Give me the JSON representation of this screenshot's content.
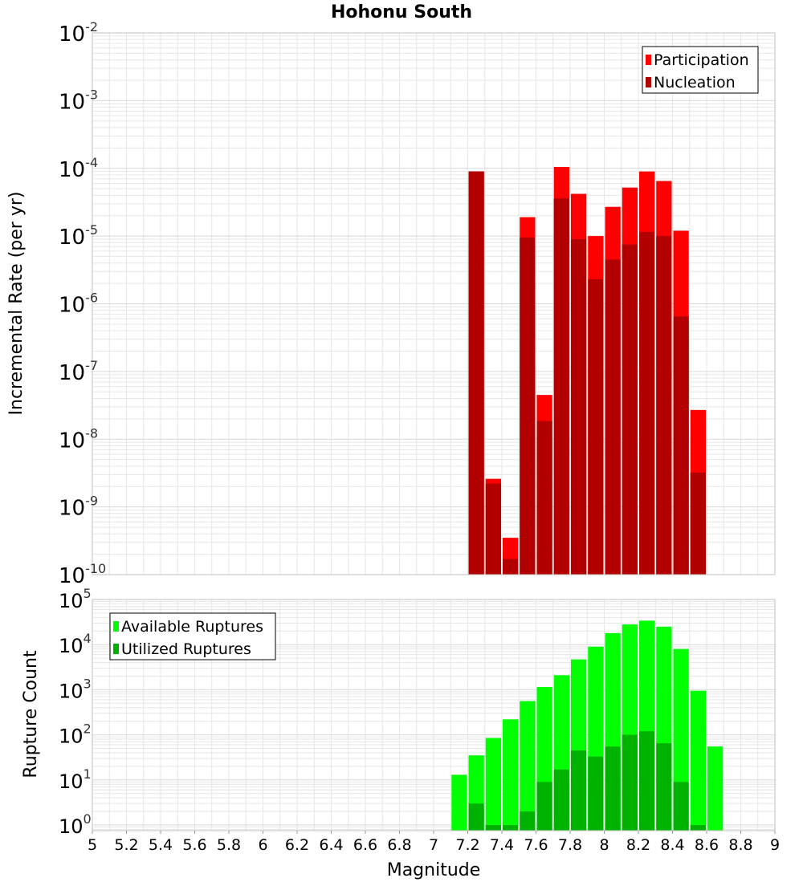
{
  "title": "Hohonu South",
  "xlabel": "Magnitude",
  "x_ticks": [
    "5",
    "5.2",
    "5.4",
    "5.6",
    "5.8",
    "6",
    "6.2",
    "6.4",
    "6.6",
    "6.8",
    "7",
    "7.2",
    "7.4",
    "7.6",
    "7.8",
    "8",
    "8.2",
    "8.4",
    "8.6",
    "8.8",
    "9"
  ],
  "colors": {
    "participation": "#ff0000",
    "nucleation": "#b20000",
    "available": "#00ff00",
    "utilized": "#00b200",
    "grid": "#e6e6e6",
    "frame": "#c0c0c0"
  },
  "chart_data": [
    {
      "type": "bar",
      "title": "Hohonu South",
      "xlabel": "Magnitude",
      "ylabel": "Incremental Rate (per yr)",
      "yscale": "log",
      "xlim": [
        5,
        9
      ],
      "ylim": [
        1e-10,
        0.01
      ],
      "y_tick_exponents": [
        "-2",
        "-3",
        "-4",
        "-5",
        "-6",
        "-7",
        "-8",
        "-9",
        "-10"
      ],
      "legend": {
        "position": "top-right",
        "entries": [
          "Participation",
          "Nucleation"
        ]
      },
      "grid": true,
      "x": [
        7.25,
        7.35,
        7.45,
        7.55,
        7.65,
        7.75,
        7.85,
        7.95,
        8.05,
        8.15,
        8.25,
        8.35,
        8.45,
        8.55
      ],
      "series": [
        {
          "name": "Participation",
          "values": [
            9e-05,
            2.6e-09,
            3.5e-10,
            1.9e-05,
            4.5e-08,
            0.000105,
            4.2e-05,
            1e-05,
            2.7e-05,
            5.2e-05,
            9e-05,
            6.5e-05,
            1.2e-05,
            2.7e-08
          ]
        },
        {
          "name": "Nucleation",
          "values": [
            9e-05,
            2.2e-09,
            1.7e-10,
            9.5e-06,
            1.85e-08,
            3.6e-05,
            9e-06,
            2.3e-06,
            4.5e-06,
            7.5e-06,
            1.15e-05,
            1e-05,
            6.5e-07,
            3.2e-09
          ]
        }
      ]
    },
    {
      "type": "bar",
      "ylabel": "Rupture Count",
      "yscale": "log",
      "xlim": [
        5,
        9
      ],
      "ylim": [
        0.75,
        100000
      ],
      "y_tick_exponents": [
        "5",
        "4",
        "3",
        "2",
        "1",
        "0"
      ],
      "legend": {
        "position": "top-left",
        "entries": [
          "Available Ruptures",
          "Utilized Ruptures"
        ]
      },
      "grid": true,
      "x": [
        7.15,
        7.25,
        7.35,
        7.45,
        7.55,
        7.65,
        7.75,
        7.85,
        7.95,
        8.05,
        8.15,
        8.25,
        8.35,
        8.45,
        8.55,
        8.65
      ],
      "series": [
        {
          "name": "Available Ruptures",
          "values": [
            13,
            35,
            85,
            220,
            560,
            1150,
            2100,
            4700,
            9000,
            18000,
            28000,
            34000,
            25000,
            8000,
            950,
            55
          ]
        },
        {
          "name": "Utilized Ruptures",
          "values": [
            0,
            3,
            1,
            1,
            2,
            9,
            17,
            45,
            33,
            55,
            100,
            120,
            65,
            9,
            1,
            0
          ]
        }
      ]
    }
  ]
}
